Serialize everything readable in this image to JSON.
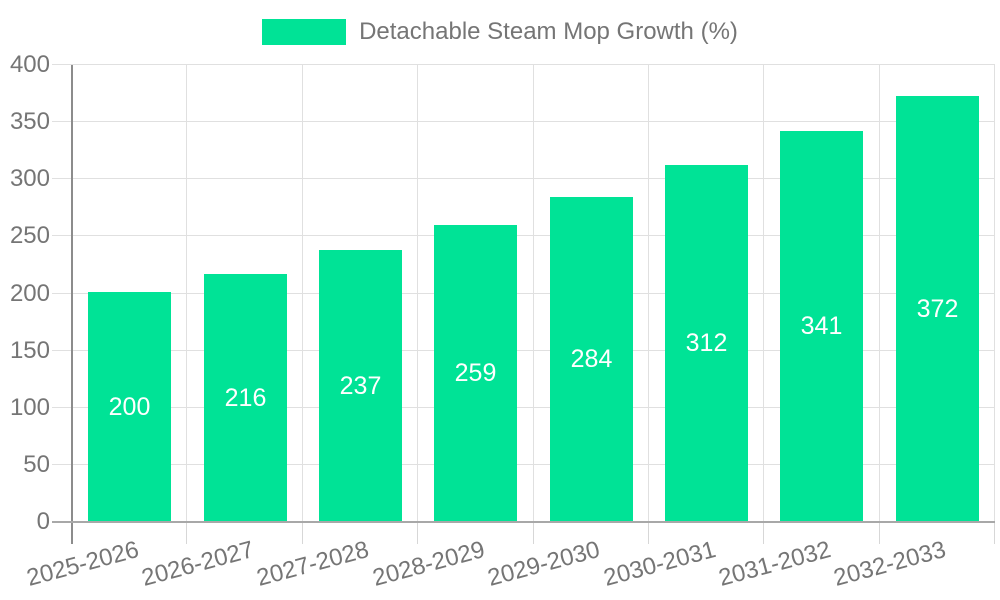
{
  "chart_data": {
    "type": "bar",
    "title": "",
    "categories": [
      "2025-2026",
      "2026-2027",
      "2027-2028",
      "2028-2029",
      "2029-2030",
      "2030-2031",
      "2031-2032",
      "2032-2033"
    ],
    "series": [
      {
        "name": "Detachable Steam Mop Growth (%)",
        "values": [
          200,
          216,
          237,
          259,
          284,
          312,
          341,
          372
        ]
      }
    ],
    "y_ticks": [
      "0",
      "50",
      "100",
      "150",
      "200",
      "250",
      "300",
      "350",
      "400"
    ],
    "ylim": [
      0,
      400
    ],
    "grid": true,
    "legend_position": "top-center",
    "bar_labels_inside": true,
    "colors": {
      "bar": "#00e396",
      "bar_label": "#ffffff",
      "axis_text": "#757575",
      "gridline": "#e0e0e0",
      "y_axis_line": "#8c8c8c",
      "x_axis_line": "#a8a8a8",
      "background": "#ffffff"
    }
  }
}
